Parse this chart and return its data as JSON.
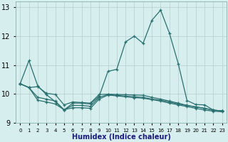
{
  "xlabel": "Humidex (Indice chaleur)",
  "ylabel": "",
  "bg_color": "#d7eeee",
  "grid_color": "#b8d4d4",
  "line_color": "#2a7070",
  "xlim": [
    -0.5,
    23.5
  ],
  "ylim": [
    9.0,
    13.2
  ],
  "yticks": [
    9,
    10,
    11,
    12,
    13
  ],
  "xticks": [
    0,
    1,
    2,
    3,
    4,
    5,
    6,
    7,
    8,
    9,
    10,
    11,
    12,
    13,
    14,
    15,
    16,
    17,
    18,
    19,
    20,
    21,
    22,
    23
  ],
  "series": [
    {
      "x": [
        0,
        1,
        2,
        3,
        4,
        5,
        6,
        7,
        8,
        9,
        10,
        11,
        12,
        13,
        14,
        15,
        16,
        17,
        18,
        19,
        20,
        21,
        22,
        23
      ],
      "y": [
        10.35,
        11.15,
        10.28,
        9.97,
        9.73,
        9.44,
        9.68,
        9.68,
        9.65,
        9.92,
        10.78,
        10.85,
        11.8,
        12.0,
        11.75,
        12.55,
        12.9,
        12.1,
        11.05,
        9.77,
        9.63,
        9.62,
        9.44,
        9.41
      ]
    },
    {
      "x": [
        0,
        1,
        2,
        3,
        4,
        5,
        6,
        7,
        8,
        9,
        10,
        11,
        12,
        13,
        14,
        15,
        16,
        17,
        18,
        19,
        20,
        21,
        22,
        23
      ],
      "y": [
        10.35,
        10.22,
        10.25,
        10.02,
        9.98,
        9.62,
        9.72,
        9.7,
        9.68,
        9.98,
        9.99,
        9.98,
        9.97,
        9.96,
        9.95,
        9.88,
        9.82,
        9.75,
        9.68,
        9.6,
        9.55,
        9.5,
        9.44,
        9.41
      ]
    },
    {
      "x": [
        0,
        1,
        2,
        3,
        4,
        5,
        6,
        7,
        8,
        9,
        10,
        11,
        12,
        13,
        14,
        15,
        16,
        17,
        18,
        19,
        20,
        21,
        22,
        23
      ],
      "y": [
        10.35,
        10.22,
        9.88,
        9.82,
        9.75,
        9.45,
        9.6,
        9.6,
        9.57,
        9.88,
        9.98,
        9.95,
        9.92,
        9.9,
        9.88,
        9.82,
        9.78,
        9.72,
        9.65,
        9.6,
        9.55,
        9.5,
        9.43,
        9.41
      ]
    },
    {
      "x": [
        0,
        1,
        2,
        3,
        4,
        5,
        6,
        7,
        8,
        9,
        10,
        11,
        12,
        13,
        14,
        15,
        16,
        17,
        18,
        19,
        20,
        21,
        22,
        23
      ],
      "y": [
        10.35,
        10.22,
        9.78,
        9.72,
        9.65,
        9.45,
        9.52,
        9.52,
        9.5,
        9.82,
        9.96,
        9.93,
        9.9,
        9.87,
        9.85,
        9.8,
        9.75,
        9.68,
        9.62,
        9.56,
        9.5,
        9.44,
        9.4,
        9.38
      ]
    }
  ]
}
